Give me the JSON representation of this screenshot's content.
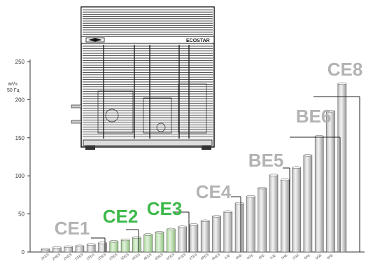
{
  "chart_data": {
    "type": "bar",
    "ylabel": "м³/ч",
    "ylabel_sub": "50 Гц",
    "ylim": [
      0,
      260
    ],
    "yticks": [
      0,
      50,
      100,
      150,
      200,
      250
    ],
    "grid": false,
    "categories": [
      "2KES",
      "2HES",
      "2HES",
      "2GES",
      "2FES",
      "2DES",
      "2DES",
      "3DES",
      "4FES",
      "4EES",
      "4DES",
      "4CES",
      "4VES",
      "4TES",
      "4PES",
      "4NES",
      "4JE",
      "4HE",
      "4GE",
      "4FE",
      "5JE",
      "5HE",
      "5GE",
      "6FE",
      "6GE",
      "8FE"
    ],
    "category_colors": [
      "#e8e8e8",
      "#e8e8e8",
      "#e8e8e8",
      "#e8e8e8",
      "#e8e8e8",
      "#e8e8e8",
      "#c8e6bd",
      "#c8e6bd",
      "#c8e6bd",
      "#c8e6bd",
      "#c8e6bd",
      "#c8e6bd",
      "#e8e8e8",
      "#e8e8e8",
      "#e8e8e8",
      "#e8e8e8",
      "#e8e8e8",
      "#e8e8e8",
      "#e8e8e8",
      "#e8e8e8",
      "#e8e8e8",
      "#e8e8e8",
      "#e8e8e8",
      "#e8e8e8",
      "#e8e8e8",
      "#e8e8e8"
    ],
    "values": [
      4,
      6,
      7,
      8,
      10,
      12,
      14,
      16,
      19,
      23,
      26,
      30,
      33,
      36,
      41,
      47,
      53,
      64,
      73,
      84,
      101,
      95,
      111,
      127,
      152,
      185
    ],
    "extra_value": 221,
    "groups": [
      {
        "label": "CE1",
        "color": "#b3b3b3"
      },
      {
        "label": "CE2",
        "color": "#3cb94a"
      },
      {
        "label": "CE3",
        "color": "#3cb94a"
      },
      {
        "label": "CE4",
        "color": "#b3b3b3"
      },
      {
        "label": "BE5",
        "color": "#b3b3b3"
      },
      {
        "label": "BE6",
        "color": "#b3b3b3"
      },
      {
        "label": "CE8",
        "color": "#b3b3b3"
      }
    ],
    "product_label": "ECOSTAR"
  }
}
